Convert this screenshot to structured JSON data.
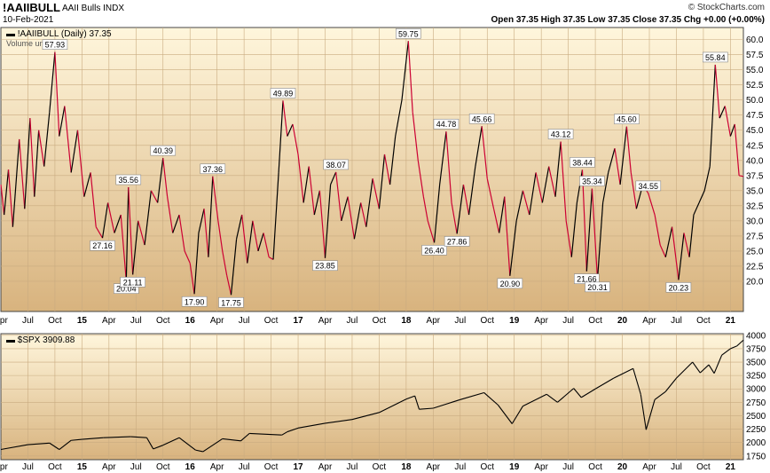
{
  "header": {
    "symbol": "!AAIIBULL",
    "name": "AAII Bulls",
    "exchange": "INDX",
    "date": "10-Feb-2021",
    "brand": "© StockCharts.com",
    "quote": "Open 37.35 High 37.35 Low 37.35 Close 37.35 Chg +0.00 (+0.00%)"
  },
  "colors": {
    "bg_top": "#fff6dc",
    "bg_bottom": "#d8b37e",
    "up": "#000000",
    "down": "#cc0033",
    "grid": "#c9ab80"
  },
  "chart_data": [
    {
      "type": "line",
      "legend": "!AAIIBULL (Daily) 37.35",
      "legend2": "Volume undef",
      "ylim": [
        15,
        62
      ],
      "yticks": [
        20.0,
        22.5,
        25.0,
        27.5,
        30.0,
        32.5,
        35.0,
        37.5,
        40.0,
        42.5,
        45.0,
        47.5,
        50.0,
        52.5,
        55.0,
        57.5,
        60.0
      ],
      "ytick_labels": [
        "20.0",
        "22.5",
        "25.0",
        "27.5",
        "30.0",
        "32.5",
        "35.0",
        "37.5",
        "40.0",
        "42.5",
        "45.0",
        "47.5",
        "50.0",
        "52.5",
        "55.0",
        "57.5",
        "60.0"
      ],
      "xlim": [
        2014.25,
        2021.12
      ],
      "xticks": [
        2014.25,
        2014.5,
        2014.75,
        2015,
        2015.25,
        2015.5,
        2015.75,
        2016,
        2016.25,
        2016.5,
        2016.75,
        2017,
        2017.25,
        2017.5,
        2017.75,
        2018,
        2018.25,
        2018.5,
        2018.75,
        2019,
        2019.25,
        2019.5,
        2019.75,
        2020,
        2020.25,
        2020.5,
        2020.75,
        2021
      ],
      "xtick_labels": [
        "Apr",
        "Jul",
        "Oct",
        "15",
        "Apr",
        "Jul",
        "Oct",
        "16",
        "Apr",
        "Jul",
        "Oct",
        "17",
        "Apr",
        "Jul",
        "Oct",
        "18",
        "Apr",
        "Jul",
        "Oct",
        "19",
        "Apr",
        "Jul",
        "Oct",
        "20",
        "Apr",
        "Jul",
        "Oct",
        "21"
      ],
      "anchors": [
        [
          2014.25,
          36.0
        ],
        [
          2014.28,
          31.0
        ],
        [
          2014.32,
          38.5
        ],
        [
          2014.36,
          29.0
        ],
        [
          2014.42,
          43.5
        ],
        [
          2014.47,
          32.0
        ],
        [
          2014.52,
          47.0
        ],
        [
          2014.56,
          34.0
        ],
        [
          2014.6,
          45.0
        ],
        [
          2014.65,
          39.0
        ],
        [
          2014.7,
          48.0
        ],
        [
          2014.75,
          57.93
        ],
        [
          2014.79,
          44.0
        ],
        [
          2014.84,
          49.0
        ],
        [
          2014.9,
          38.0
        ],
        [
          2014.96,
          45.0
        ],
        [
          2015.02,
          34.0
        ],
        [
          2015.08,
          38.0
        ],
        [
          2015.13,
          29.0
        ],
        [
          2015.19,
          27.16
        ],
        [
          2015.24,
          33.0
        ],
        [
          2015.3,
          28.0
        ],
        [
          2015.36,
          31.0
        ],
        [
          2015.41,
          20.04
        ],
        [
          2015.43,
          35.56
        ],
        [
          2015.47,
          21.11
        ],
        [
          2015.52,
          30.0
        ],
        [
          2015.58,
          26.0
        ],
        [
          2015.64,
          35.0
        ],
        [
          2015.7,
          33.0
        ],
        [
          2015.75,
          40.39
        ],
        [
          2015.79,
          34.0
        ],
        [
          2015.84,
          28.0
        ],
        [
          2015.9,
          31.0
        ],
        [
          2015.95,
          25.0
        ],
        [
          2016.0,
          23.0
        ],
        [
          2016.04,
          17.9
        ],
        [
          2016.08,
          28.0
        ],
        [
          2016.13,
          32.0
        ],
        [
          2016.17,
          24.0
        ],
        [
          2016.21,
          37.36
        ],
        [
          2016.26,
          30.0
        ],
        [
          2016.3,
          25.0
        ],
        [
          2016.34,
          21.0
        ],
        [
          2016.38,
          17.75
        ],
        [
          2016.43,
          27.0
        ],
        [
          2016.48,
          31.0
        ],
        [
          2016.53,
          23.0
        ],
        [
          2016.58,
          30.0
        ],
        [
          2016.63,
          25.0
        ],
        [
          2016.68,
          28.0
        ],
        [
          2016.73,
          24.0
        ],
        [
          2016.77,
          23.6
        ],
        [
          2016.82,
          38.0
        ],
        [
          2016.86,
          49.89
        ],
        [
          2016.9,
          44.0
        ],
        [
          2016.95,
          46.0
        ],
        [
          2017.0,
          41.0
        ],
        [
          2017.05,
          33.0
        ],
        [
          2017.1,
          39.0
        ],
        [
          2017.15,
          31.0
        ],
        [
          2017.2,
          35.0
        ],
        [
          2017.25,
          23.85
        ],
        [
          2017.3,
          36.0
        ],
        [
          2017.35,
          38.07
        ],
        [
          2017.4,
          30.0
        ],
        [
          2017.46,
          34.0
        ],
        [
          2017.52,
          27.0
        ],
        [
          2017.58,
          33.0
        ],
        [
          2017.63,
          29.0
        ],
        [
          2017.69,
          37.0
        ],
        [
          2017.75,
          32.0
        ],
        [
          2017.8,
          41.0
        ],
        [
          2017.85,
          36.0
        ],
        [
          2017.9,
          44.0
        ],
        [
          2017.96,
          50.0
        ],
        [
          2018.02,
          59.75
        ],
        [
          2018.06,
          48.0
        ],
        [
          2018.11,
          40.0
        ],
        [
          2018.16,
          34.0
        ],
        [
          2018.2,
          30.0
        ],
        [
          2018.26,
          26.4
        ],
        [
          2018.31,
          36.0
        ],
        [
          2018.37,
          44.78
        ],
        [
          2018.42,
          33.0
        ],
        [
          2018.47,
          27.86
        ],
        [
          2018.53,
          36.0
        ],
        [
          2018.58,
          31.0
        ],
        [
          2018.64,
          39.0
        ],
        [
          2018.7,
          45.66
        ],
        [
          2018.75,
          37.0
        ],
        [
          2018.81,
          32.0
        ],
        [
          2018.86,
          28.0
        ],
        [
          2018.91,
          34.0
        ],
        [
          2018.96,
          20.9
        ],
        [
          2019.02,
          30.0
        ],
        [
          2019.08,
          35.0
        ],
        [
          2019.14,
          31.0
        ],
        [
          2019.2,
          38.0
        ],
        [
          2019.26,
          33.0
        ],
        [
          2019.32,
          39.0
        ],
        [
          2019.38,
          34.0
        ],
        [
          2019.43,
          43.12
        ],
        [
          2019.48,
          30.0
        ],
        [
          2019.53,
          24.0
        ],
        [
          2019.58,
          33.0
        ],
        [
          2019.63,
          38.44
        ],
        [
          2019.67,
          21.66
        ],
        [
          2019.72,
          35.34
        ],
        [
          2019.77,
          20.31
        ],
        [
          2019.82,
          33.0
        ],
        [
          2019.87,
          38.0
        ],
        [
          2019.93,
          42.0
        ],
        [
          2019.98,
          36.0
        ],
        [
          2020.04,
          45.6
        ],
        [
          2020.08,
          38.0
        ],
        [
          2020.13,
          32.0
        ],
        [
          2020.19,
          36.0
        ],
        [
          2020.24,
          34.55
        ],
        [
          2020.3,
          31.0
        ],
        [
          2020.35,
          26.0
        ],
        [
          2020.4,
          24.0
        ],
        [
          2020.46,
          29.0
        ],
        [
          2020.52,
          20.23
        ],
        [
          2020.57,
          28.0
        ],
        [
          2020.62,
          24.0
        ],
        [
          2020.66,
          31.0
        ],
        [
          2020.71,
          33.0
        ],
        [
          2020.76,
          35.0
        ],
        [
          2020.81,
          39.0
        ],
        [
          2020.86,
          55.84
        ],
        [
          2020.9,
          47.0
        ],
        [
          2020.95,
          49.0
        ],
        [
          2021.0,
          44.0
        ],
        [
          2021.04,
          46.0
        ],
        [
          2021.08,
          37.5
        ],
        [
          2021.12,
          37.35
        ]
      ],
      "annotations": [
        {
          "x": 2014.75,
          "y": 57.93,
          "label": "57.93",
          "pos": "above"
        },
        {
          "x": 2015.19,
          "y": 27.16,
          "label": "27.16",
          "pos": "below"
        },
        {
          "x": 2015.41,
          "y": 20.04,
          "label": "20.04",
          "pos": "below"
        },
        {
          "x": 2015.43,
          "y": 35.56,
          "label": "35.56",
          "pos": "above"
        },
        {
          "x": 2015.47,
          "y": 21.11,
          "label": "21.11",
          "pos": "below"
        },
        {
          "x": 2015.75,
          "y": 40.39,
          "label": "40.39",
          "pos": "above"
        },
        {
          "x": 2016.04,
          "y": 17.9,
          "label": "17.90",
          "pos": "below"
        },
        {
          "x": 2016.21,
          "y": 37.36,
          "label": "37.36",
          "pos": "above"
        },
        {
          "x": 2016.38,
          "y": 17.75,
          "label": "17.75",
          "pos": "below"
        },
        {
          "x": 2016.86,
          "y": 49.89,
          "label": "49.89",
          "pos": "above"
        },
        {
          "x": 2017.25,
          "y": 23.85,
          "label": "23.85",
          "pos": "below"
        },
        {
          "x": 2017.35,
          "y": 38.07,
          "label": "38.07",
          "pos": "above"
        },
        {
          "x": 2018.02,
          "y": 59.75,
          "label": "59.75",
          "pos": "above"
        },
        {
          "x": 2018.26,
          "y": 26.4,
          "label": "26.40",
          "pos": "below"
        },
        {
          "x": 2018.37,
          "y": 44.78,
          "label": "44.78",
          "pos": "above"
        },
        {
          "x": 2018.47,
          "y": 27.86,
          "label": "27.86",
          "pos": "below"
        },
        {
          "x": 2018.7,
          "y": 45.66,
          "label": "45.66",
          "pos": "above"
        },
        {
          "x": 2018.96,
          "y": 20.9,
          "label": "20.90",
          "pos": "below"
        },
        {
          "x": 2019.43,
          "y": 43.12,
          "label": "43.12",
          "pos": "above"
        },
        {
          "x": 2019.63,
          "y": 38.44,
          "label": "38.44",
          "pos": "above"
        },
        {
          "x": 2019.67,
          "y": 21.66,
          "label": "21.66",
          "pos": "below"
        },
        {
          "x": 2019.72,
          "y": 35.34,
          "label": "35.34",
          "pos": "above"
        },
        {
          "x": 2019.77,
          "y": 20.31,
          "label": "20.31",
          "pos": "below"
        },
        {
          "x": 2020.04,
          "y": 45.6,
          "label": "45.60",
          "pos": "above"
        },
        {
          "x": 2020.24,
          "y": 34.55,
          "label": "34.55",
          "pos": "above"
        },
        {
          "x": 2020.52,
          "y": 20.23,
          "label": "20.23",
          "pos": "below"
        },
        {
          "x": 2020.86,
          "y": 55.84,
          "label": "55.84",
          "pos": "above"
        }
      ]
    },
    {
      "type": "line",
      "legend": "$SPX 3909.88",
      "ylim": [
        1680,
        4030
      ],
      "yticks": [
        1750,
        2000,
        2250,
        2500,
        2750,
        3000,
        3250,
        3500,
        3750,
        4000
      ],
      "ytick_labels": [
        "1750",
        "2000",
        "2250",
        "2500",
        "2750",
        "3000",
        "3250",
        "3500",
        "3750",
        "4000"
      ],
      "xlim": [
        2014.25,
        2021.12
      ],
      "xticks": [
        2014.25,
        2014.5,
        2014.75,
        2015,
        2015.25,
        2015.5,
        2015.75,
        2016,
        2016.25,
        2016.5,
        2016.75,
        2017,
        2017.25,
        2017.5,
        2017.75,
        2018,
        2018.25,
        2018.5,
        2018.75,
        2019,
        2019.25,
        2019.5,
        2019.75,
        2020,
        2020.25,
        2020.5,
        2020.75,
        2021
      ],
      "xtick_labels": [
        "Apr",
        "Jul",
        "Oct",
        "15",
        "Apr",
        "Jul",
        "Oct",
        "16",
        "Apr",
        "Jul",
        "Oct",
        "17",
        "Apr",
        "Jul",
        "Oct",
        "18",
        "Apr",
        "Jul",
        "Oct",
        "19",
        "Apr",
        "Jul",
        "Oct",
        "20",
        "Apr",
        "Jul",
        "Oct",
        "21"
      ],
      "anchors": [
        [
          2014.25,
          1870
        ],
        [
          2014.5,
          1960
        ],
        [
          2014.7,
          1990
        ],
        [
          2014.79,
          1870
        ],
        [
          2014.9,
          2040
        ],
        [
          2015.0,
          2060
        ],
        [
          2015.2,
          2090
        ],
        [
          2015.45,
          2110
        ],
        [
          2015.6,
          2090
        ],
        [
          2015.66,
          1880
        ],
        [
          2015.75,
          1950
        ],
        [
          2015.9,
          2090
        ],
        [
          2016.05,
          1860
        ],
        [
          2016.12,
          1830
        ],
        [
          2016.3,
          2070
        ],
        [
          2016.47,
          2030
        ],
        [
          2016.55,
          2170
        ],
        [
          2016.85,
          2140
        ],
        [
          2016.9,
          2200
        ],
        [
          2017.0,
          2270
        ],
        [
          2017.25,
          2360
        ],
        [
          2017.5,
          2430
        ],
        [
          2017.75,
          2560
        ],
        [
          2018.0,
          2810
        ],
        [
          2018.08,
          2870
        ],
        [
          2018.12,
          2620
        ],
        [
          2018.25,
          2640
        ],
        [
          2018.5,
          2800
        ],
        [
          2018.72,
          2930
        ],
        [
          2018.85,
          2700
        ],
        [
          2018.98,
          2350
        ],
        [
          2019.08,
          2680
        ],
        [
          2019.3,
          2900
        ],
        [
          2019.4,
          2750
        ],
        [
          2019.55,
          3010
        ],
        [
          2019.62,
          2840
        ],
        [
          2019.75,
          3000
        ],
        [
          2019.92,
          3200
        ],
        [
          2020.1,
          3380
        ],
        [
          2020.17,
          2900
        ],
        [
          2020.22,
          2240
        ],
        [
          2020.3,
          2800
        ],
        [
          2020.4,
          2950
        ],
        [
          2020.5,
          3200
        ],
        [
          2020.65,
          3500
        ],
        [
          2020.72,
          3300
        ],
        [
          2020.8,
          3450
        ],
        [
          2020.85,
          3290
        ],
        [
          2020.92,
          3630
        ],
        [
          2021.0,
          3750
        ],
        [
          2021.06,
          3800
        ],
        [
          2021.12,
          3909.88
        ]
      ]
    }
  ]
}
